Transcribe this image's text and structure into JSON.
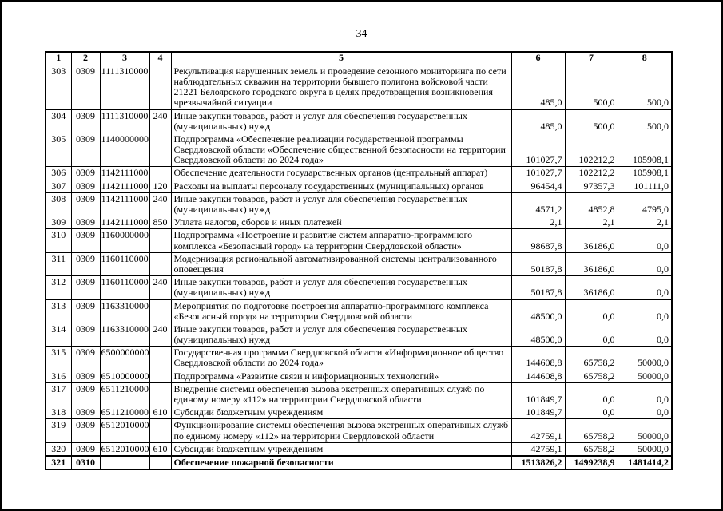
{
  "page": {
    "number": "34"
  },
  "colors": {
    "ink": "#000000",
    "paper": "#ffffff"
  },
  "table": {
    "headers": [
      "1",
      "2",
      "3",
      "4",
      "5",
      "6",
      "7",
      "8"
    ],
    "rows": [
      {
        "num": "303",
        "section": "0309",
        "target": "1111310000",
        "type": "",
        "desc": "Рекультивация нарушенных земель и проведение сезонного мониторинга по сети наблюдательных скважин на территории бывшего полигона войсковой части 21221 Белоярского городского округа в целях предотвращения возникновения чрезвычайной ситуации",
        "v1": "485,0",
        "v2": "500,0",
        "v3": "500,0",
        "bold": false
      },
      {
        "num": "304",
        "section": "0309",
        "target": "1111310000",
        "type": "240",
        "desc": "Иные закупки товаров, работ и услуг для обеспечения государственных (муниципальных) нужд",
        "v1": "485,0",
        "v2": "500,0",
        "v3": "500,0",
        "bold": false
      },
      {
        "num": "305",
        "section": "0309",
        "target": "1140000000",
        "type": "",
        "desc": "Подпрограмма «Обеспечение реализации государственной программы Свердловской области «Обеспечение общественной безопасности на территории Свердловской области до 2024 года»",
        "v1": "101027,7",
        "v2": "102212,2",
        "v3": "105908,1",
        "bold": false
      },
      {
        "num": "306",
        "section": "0309",
        "target": "1142111000",
        "type": "",
        "desc": "Обеспечение деятельности государственных органов (центральный аппарат)",
        "v1": "101027,7",
        "v2": "102212,2",
        "v3": "105908,1",
        "bold": false
      },
      {
        "num": "307",
        "section": "0309",
        "target": "1142111000",
        "type": "120",
        "desc": "Расходы на выплаты персоналу государственных (муниципальных) органов",
        "v1": "96454,4",
        "v2": "97357,3",
        "v3": "101111,0",
        "bold": false
      },
      {
        "num": "308",
        "section": "0309",
        "target": "1142111000",
        "type": "240",
        "desc": "Иные закупки товаров, работ и услуг для обеспечения государственных (муниципальных) нужд",
        "v1": "4571,2",
        "v2": "4852,8",
        "v3": "4795,0",
        "bold": false
      },
      {
        "num": "309",
        "section": "0309",
        "target": "1142111000",
        "type": "850",
        "desc": "Уплата налогов, сборов и иных платежей",
        "v1": "2,1",
        "v2": "2,1",
        "v3": "2,1",
        "bold": false
      },
      {
        "num": "310",
        "section": "0309",
        "target": "1160000000",
        "type": "",
        "desc": "Подпрограмма «Построение и развитие систем аппаратно-программного комплекса «Безопасный город» на территории Свердловской области»",
        "v1": "98687,8",
        "v2": "36186,0",
        "v3": "0,0",
        "bold": false
      },
      {
        "num": "311",
        "section": "0309",
        "target": "1160110000",
        "type": "",
        "desc": "Модернизация региональной автоматизированной системы централизованного оповещения",
        "v1": "50187,8",
        "v2": "36186,0",
        "v3": "0,0",
        "bold": false
      },
      {
        "num": "312",
        "section": "0309",
        "target": "1160110000",
        "type": "240",
        "desc": "Иные закупки товаров, работ и услуг для обеспечения государственных (муниципальных) нужд",
        "v1": "50187,8",
        "v2": "36186,0",
        "v3": "0,0",
        "bold": false
      },
      {
        "num": "313",
        "section": "0309",
        "target": "1163310000",
        "type": "",
        "desc": "Мероприятия по подготовке построения аппаратно-программного комплекса «Безопасный город» на территории Свердловской области",
        "v1": "48500,0",
        "v2": "0,0",
        "v3": "0,0",
        "bold": false
      },
      {
        "num": "314",
        "section": "0309",
        "target": "1163310000",
        "type": "240",
        "desc": "Иные закупки товаров, работ и услуг для обеспечения государственных (муниципальных) нужд",
        "v1": "48500,0",
        "v2": "0,0",
        "v3": "0,0",
        "bold": false
      },
      {
        "num": "315",
        "section": "0309",
        "target": "6500000000",
        "type": "",
        "desc": "Государственная программа Свердловской области «Информационное общество Свердловской области до 2024 года»",
        "v1": "144608,8",
        "v2": "65758,2",
        "v3": "50000,0",
        "bold": false
      },
      {
        "num": "316",
        "section": "0309",
        "target": "6510000000",
        "type": "",
        "desc": "Подпрограмма «Развитие связи и информационных технологий»",
        "v1": "144608,8",
        "v2": "65758,2",
        "v3": "50000,0",
        "bold": false
      },
      {
        "num": "317",
        "section": "0309",
        "target": "6511210000",
        "type": "",
        "desc": "Внедрение системы обеспечения вызова экстренных оперативных служб по единому номеру «112» на территории Свердловской области",
        "v1": "101849,7",
        "v2": "0,0",
        "v3": "0,0",
        "bold": false
      },
      {
        "num": "318",
        "section": "0309",
        "target": "6511210000",
        "type": "610",
        "desc": "Субсидии бюджетным учреждениям",
        "v1": "101849,7",
        "v2": "0,0",
        "v3": "0,0",
        "bold": false
      },
      {
        "num": "319",
        "section": "0309",
        "target": "6512010000",
        "type": "",
        "desc": "Функционирование системы обеспечения вызова экстренных оперативных служб по единому номеру «112» на территории Свердловской области",
        "v1": "42759,1",
        "v2": "65758,2",
        "v3": "50000,0",
        "bold": false
      },
      {
        "num": "320",
        "section": "0309",
        "target": "6512010000",
        "type": "610",
        "desc": "Субсидии бюджетным учреждениям",
        "v1": "42759,1",
        "v2": "65758,2",
        "v3": "50000,0",
        "bold": false
      },
      {
        "num": "321",
        "section": "0310",
        "target": "",
        "type": "",
        "desc": "Обеспечение пожарной безопасности",
        "v1": "1513826,2",
        "v2": "1499238,9",
        "v3": "1481414,2",
        "bold": true
      }
    ]
  }
}
